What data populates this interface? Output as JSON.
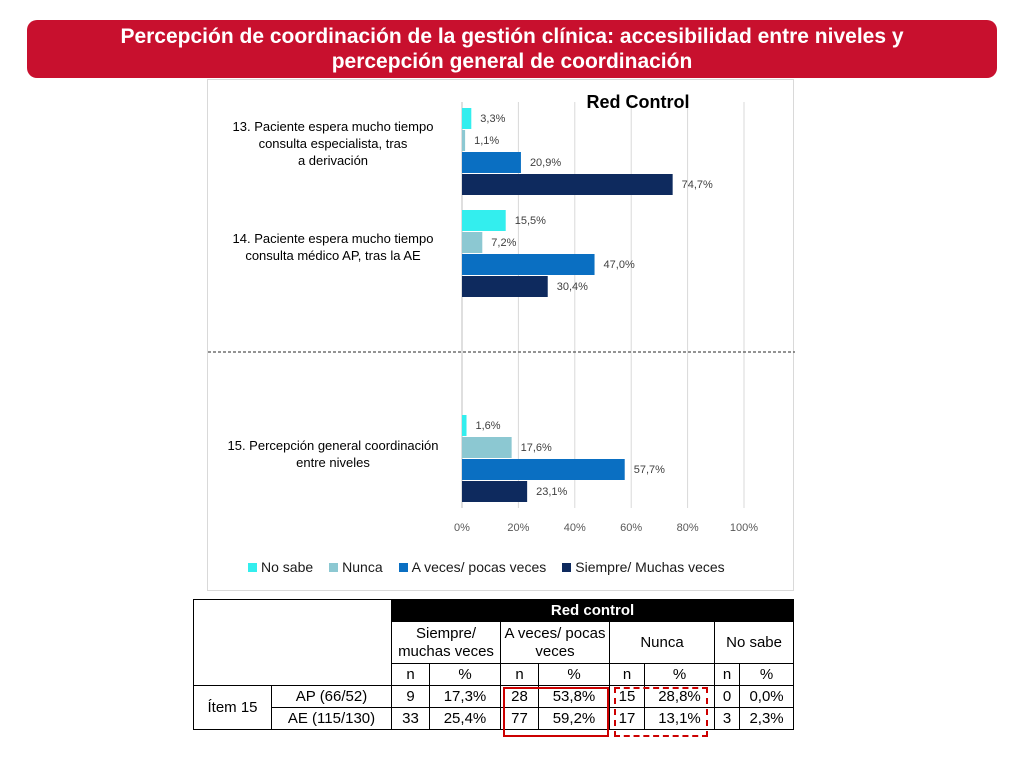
{
  "title": "Percepción de coordinación de la gestión clínica: accesibilidad entre niveles y percepción general de coordinación",
  "chart_data": {
    "type": "bar",
    "orientation": "horizontal",
    "title": "Red Control",
    "xlim": [
      0,
      100
    ],
    "x_ticks": [
      "0%",
      "20%",
      "40%",
      "60%",
      "80%",
      "100%"
    ],
    "grid": "vertical",
    "legend_position": "bottom",
    "categories": [
      "13. Paciente espera mucho tiempo consulta especialista, tras la derivación",
      "14. Paciente espera mucho tiempo consulta  médico AP, tras la AE",
      "15. Percepción general coordinación entre niveles"
    ],
    "series": [
      {
        "name": "No sabe",
        "color": "#33eeee",
        "values": [
          3.3,
          15.5,
          1.6
        ],
        "labels": [
          "3,3%",
          "15,5%",
          "1,6%"
        ]
      },
      {
        "name": "Nunca",
        "color": "#8cc8d2",
        "values": [
          1.1,
          7.2,
          17.6
        ],
        "labels": [
          "1,1%",
          "7,2%",
          "17,6%"
        ]
      },
      {
        "name": "A veces/ pocas veces",
        "color": "#0a6fc2",
        "values": [
          20.9,
          47.0,
          57.7
        ],
        "labels": [
          "20,9%",
          "47,0%",
          "57,7%"
        ]
      },
      {
        "name": "Siempre/ Muchas veces",
        "color": "#0e2a5e",
        "values": [
          74.7,
          30.4,
          23.1
        ],
        "labels": [
          "74,7%",
          "30,4%",
          "23,1%"
        ]
      }
    ]
  },
  "table": {
    "group_header": "Red control",
    "col_groups": [
      "Siempre/ muchas veces",
      "A veces/ pocas veces",
      "Nunca",
      "No sabe"
    ],
    "sub_headers": [
      "n",
      "%",
      "n",
      "%",
      "n",
      "%",
      "n",
      "%"
    ],
    "row_group": "Ítem 15",
    "rows": [
      {
        "label": "AP (66/52)",
        "cells": [
          "9",
          "17,3%",
          "28",
          "53,8%",
          "15",
          "28,8%",
          "0",
          "0,0%"
        ]
      },
      {
        "label": "AE (115/130)",
        "cells": [
          "33",
          "25,4%",
          "77",
          "59,2%",
          "17",
          "13,1%",
          "3",
          "2,3%"
        ]
      }
    ],
    "highlight_color": "#cc0000"
  }
}
